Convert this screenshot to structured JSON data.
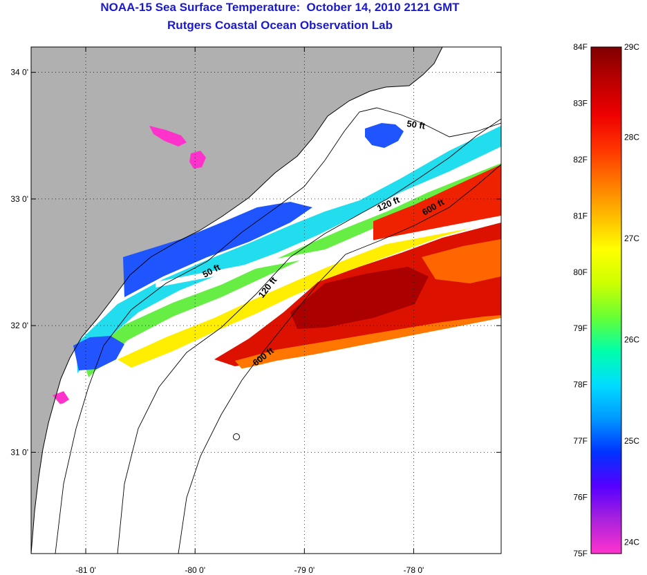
{
  "header": {
    "title": "NOAA-15 Sea Surface Temperature:  October 14, 2010 2121 GMT",
    "subtitle": "Rutgers Coastal Ocean Observation Lab"
  },
  "map": {
    "lon_range": [
      -81.5,
      -77.2
    ],
    "lat_range": [
      30.2,
      34.2
    ],
    "x_ticks": [
      {
        "value": -81,
        "label": "-81 0'"
      },
      {
        "value": -80,
        "label": "-80 0'"
      },
      {
        "value": -79,
        "label": "-79 0'"
      },
      {
        "value": -78,
        "label": "-78 0'"
      }
    ],
    "y_ticks": [
      {
        "value": 34,
        "label": "34 0'"
      },
      {
        "value": 33,
        "label": "33 0'"
      },
      {
        "value": 32,
        "label": "32 0'"
      },
      {
        "value": 31,
        "label": "31 0'"
      }
    ],
    "grid": "dotted",
    "land_color": "#b0b0b0",
    "no_data_color": "#ffffff",
    "contours": [
      {
        "name": "contour-50ft",
        "labels": [
          "50 ft",
          "50 ft"
        ]
      },
      {
        "name": "contour-120ft",
        "labels": [
          "120 ft",
          "120 ft"
        ]
      },
      {
        "name": "contour-600ft",
        "labels": [
          "600 ft",
          "600 ft"
        ]
      }
    ]
  },
  "colorbar": {
    "fahrenheit_labels": [
      "84F",
      "83F",
      "82F",
      "81F",
      "80F",
      "79F",
      "78F",
      "77F",
      "76F",
      "75F"
    ],
    "celsius_labels": [
      "29C",
      "28C",
      "27C",
      "26C",
      "25C",
      "24C"
    ],
    "colors": [
      "#ff33cc",
      "#aa22dd",
      "#5500ff",
      "#0033ff",
      "#0099ff",
      "#00ddff",
      "#00ffaa",
      "#66ff33",
      "#ccff00",
      "#ffff00",
      "#ffbb00",
      "#ff7700",
      "#ff3300",
      "#ee0000",
      "#bb0000",
      "#800000"
    ]
  }
}
